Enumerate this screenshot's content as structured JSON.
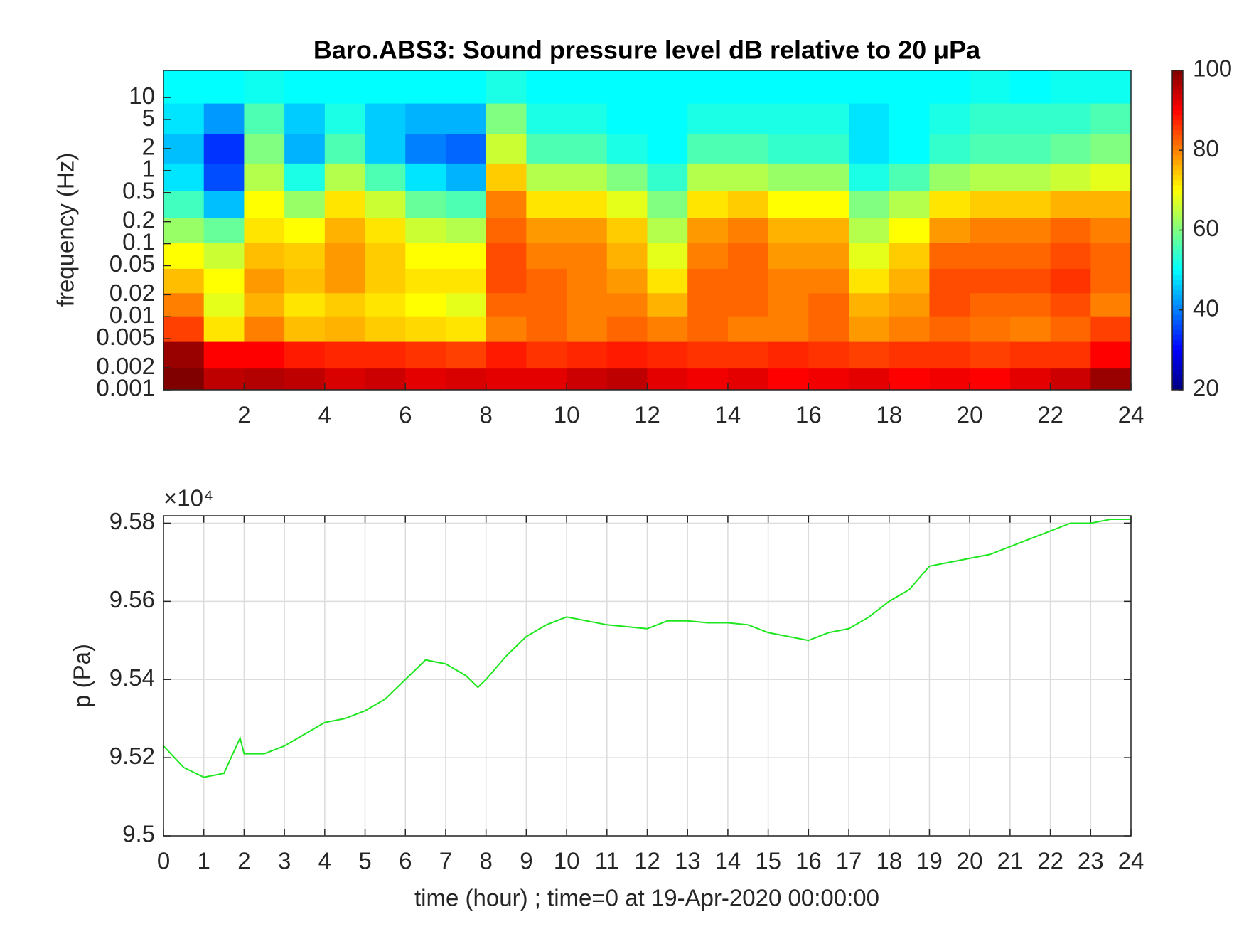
{
  "chart_data": [
    {
      "type": "heatmap",
      "title": "Baro.ABS3: Sound pressure level dB relative to 20 μPa",
      "ylabel": "frequency (Hz)",
      "yscale": "log",
      "colormap": "jet",
      "x": [
        0.5,
        1.5,
        2.5,
        3.5,
        4.5,
        5.5,
        6.5,
        7.5,
        8.5,
        9.5,
        10.5,
        11.5,
        12.5,
        13.5,
        14.5,
        15.5,
        16.5,
        17.5,
        18.5,
        19.5,
        20.5,
        21.5,
        22.5,
        23.5
      ],
      "y": [
        0.0013,
        0.003,
        0.007,
        0.015,
        0.03,
        0.07,
        0.15,
        0.35,
        0.8,
        2,
        5,
        14
      ],
      "z": [
        [
          100,
          95,
          96,
          95,
          93,
          94,
          92,
          93,
          92,
          92,
          94,
          95,
          92,
          91,
          92,
          90,
          91,
          92,
          90,
          91,
          90,
          92,
          94,
          98
        ],
        [
          98,
          90,
          90,
          88,
          87,
          87,
          86,
          85,
          88,
          86,
          87,
          88,
          87,
          86,
          86,
          87,
          86,
          85,
          86,
          86,
          85,
          86,
          86,
          90
        ],
        [
          85,
          72,
          80,
          75,
          76,
          74,
          73,
          72,
          80,
          82,
          80,
          82,
          80,
          82,
          80,
          80,
          82,
          78,
          80,
          82,
          81,
          80,
          82,
          85
        ],
        [
          80,
          68,
          76,
          72,
          74,
          72,
          70,
          68,
          82,
          82,
          80,
          80,
          76,
          82,
          82,
          80,
          82,
          76,
          78,
          84,
          82,
          82,
          84,
          80
        ],
        [
          75,
          70,
          78,
          75,
          78,
          74,
          72,
          72,
          84,
          82,
          80,
          78,
          72,
          82,
          82,
          80,
          80,
          72,
          76,
          84,
          84,
          84,
          86,
          82
        ],
        [
          70,
          66,
          75,
          74,
          78,
          74,
          70,
          70,
          84,
          80,
          80,
          76,
          68,
          80,
          82,
          78,
          78,
          68,
          74,
          82,
          82,
          82,
          84,
          82
        ],
        [
          62,
          58,
          72,
          70,
          76,
          72,
          66,
          64,
          82,
          78,
          78,
          74,
          64,
          78,
          80,
          76,
          76,
          64,
          70,
          78,
          80,
          80,
          82,
          80
        ],
        [
          55,
          45,
          70,
          62,
          72,
          66,
          58,
          56,
          80,
          72,
          72,
          68,
          60,
          72,
          74,
          70,
          70,
          60,
          64,
          72,
          74,
          74,
          76,
          76
        ],
        [
          48,
          36,
          64,
          52,
          64,
          56,
          48,
          44,
          74,
          64,
          64,
          60,
          54,
          64,
          64,
          62,
          62,
          52,
          56,
          62,
          64,
          64,
          66,
          68
        ],
        [
          45,
          34,
          60,
          44,
          56,
          46,
          40,
          38,
          66,
          56,
          56,
          52,
          50,
          56,
          56,
          54,
          54,
          48,
          50,
          54,
          56,
          56,
          58,
          60
        ],
        [
          48,
          42,
          56,
          46,
          52,
          46,
          44,
          44,
          60,
          52,
          52,
          50,
          50,
          52,
          52,
          52,
          52,
          48,
          50,
          52,
          54,
          54,
          54,
          56
        ],
        [
          50,
          50,
          51,
          50,
          50,
          50,
          50,
          50,
          52,
          50,
          50,
          50,
          50,
          50,
          50,
          50,
          50,
          50,
          50,
          50,
          51,
          50,
          51,
          51
        ]
      ],
      "xlim": [
        0,
        24
      ],
      "xticks": [
        2,
        4,
        6,
        8,
        10,
        12,
        14,
        16,
        18,
        20,
        22,
        24
      ],
      "ylim": [
        0.001,
        23.5
      ],
      "yticks": [
        0.001,
        0.002,
        0.005,
        0.01,
        0.02,
        0.05,
        0.1,
        0.2,
        0.5,
        1,
        2,
        5,
        10
      ],
      "clim": [
        20,
        100
      ],
      "cticks": [
        20,
        40,
        60,
        80,
        100
      ]
    },
    {
      "type": "line",
      "xlabel": "time (hour) ; time=0 at 19-Apr-2020 00:00:00",
      "ylabel": "p (Pa)",
      "y_multiplier": "×10⁴",
      "grid": true,
      "series": [
        {
          "color": "#1ee61e",
          "x": [
            0,
            0.5,
            1,
            1.5,
            1.9,
            2,
            2.5,
            3,
            3.5,
            4,
            4.5,
            5,
            5.5,
            6,
            6.5,
            7,
            7.5,
            7.8,
            8,
            8.5,
            9,
            9.5,
            10,
            10.5,
            11,
            11.5,
            12,
            12.5,
            13,
            13.5,
            14,
            14.5,
            15,
            15.5,
            16,
            16.5,
            17,
            17.5,
            18,
            18.5,
            19,
            19.5,
            20,
            20.5,
            21,
            21.5,
            22,
            22.5,
            23,
            23.5,
            24
          ],
          "values": [
            95230,
            95175,
            95150,
            95160,
            95250,
            95210,
            95210,
            95230,
            95260,
            95290,
            95300,
            95320,
            95350,
            95400,
            95450,
            95440,
            95410,
            95380,
            95400,
            95460,
            95510,
            95540,
            95560,
            95550,
            95540,
            95535,
            95530,
            95550,
            95550,
            95545,
            95545,
            95540,
            95520,
            95510,
            95500,
            95520,
            95530,
            95560,
            95600,
            95630,
            95690,
            95700,
            95710,
            95720,
            95740,
            95760,
            95780,
            95800,
            95800,
            95810,
            95810
          ]
        }
      ],
      "xlim": [
        0,
        24
      ],
      "xticks": [
        0,
        1,
        2,
        3,
        4,
        5,
        6,
        7,
        8,
        9,
        10,
        11,
        12,
        13,
        14,
        15,
        16,
        17,
        18,
        19,
        20,
        21,
        22,
        23,
        24
      ],
      "ylim": [
        95000,
        95819
      ],
      "yticks": [
        {
          "value": 95000,
          "label": "9.5"
        },
        {
          "value": 95200,
          "label": "9.52"
        },
        {
          "value": 95400,
          "label": "9.54"
        },
        {
          "value": 95600,
          "label": "9.56"
        },
        {
          "value": 95800,
          "label": "9.58"
        }
      ]
    }
  ]
}
